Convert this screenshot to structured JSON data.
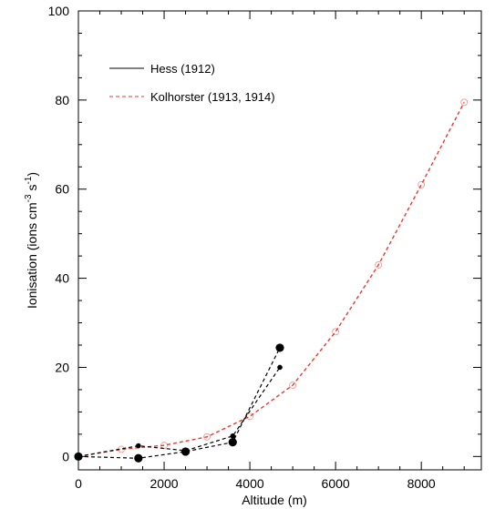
{
  "chart_data": {
    "type": "line",
    "xlabel": "Altitude (m)",
    "ylabel": {
      "prefix": "Ionisation (ions cm",
      "sup1": "-3",
      "mid": " s",
      "sup2": "-1",
      "suffix": ")"
    },
    "xlim": [
      0,
      9400
    ],
    "ylim": [
      -3,
      100
    ],
    "xticks": [
      0,
      2000,
      4000,
      6000,
      8000
    ],
    "xtick_labels": [
      "0",
      "2000",
      "4000",
      "6000",
      "8000"
    ],
    "yticks": [
      0,
      20,
      40,
      60,
      80,
      100
    ],
    "ytick_labels": [
      "0",
      "20",
      "40",
      "60",
      "80",
      "100"
    ],
    "legend_position": "top-left",
    "series": [
      {
        "name": "Hess (1912)",
        "color": "#000000",
        "marker_style": "filled-circle",
        "segments": [
          {
            "marker": "large",
            "points": [
              [
                0,
                0
              ],
              [
                1400,
                -0.4
              ],
              [
                2500,
                1.1
              ],
              [
                3600,
                3.2
              ],
              [
                4700,
                24.4
              ]
            ]
          },
          {
            "marker": "small",
            "points": [
              [
                0,
                0
              ],
              [
                1400,
                2.4
              ],
              [
                2500,
                1.3
              ],
              [
                3600,
                4.6
              ],
              [
                4700,
                20.0
              ]
            ]
          }
        ]
      },
      {
        "name": "Kolhorster (1913, 1914)",
        "color": "#e8392e",
        "marker_style": "open-circle",
        "points": [
          [
            0,
            0
          ],
          [
            1000,
            1.6
          ],
          [
            2000,
            2.5
          ],
          [
            3000,
            4.4
          ],
          [
            4000,
            9
          ],
          [
            5000,
            16
          ],
          [
            6000,
            28
          ],
          [
            7000,
            43
          ],
          [
            8000,
            61
          ],
          [
            9000,
            79.5
          ]
        ]
      }
    ]
  }
}
